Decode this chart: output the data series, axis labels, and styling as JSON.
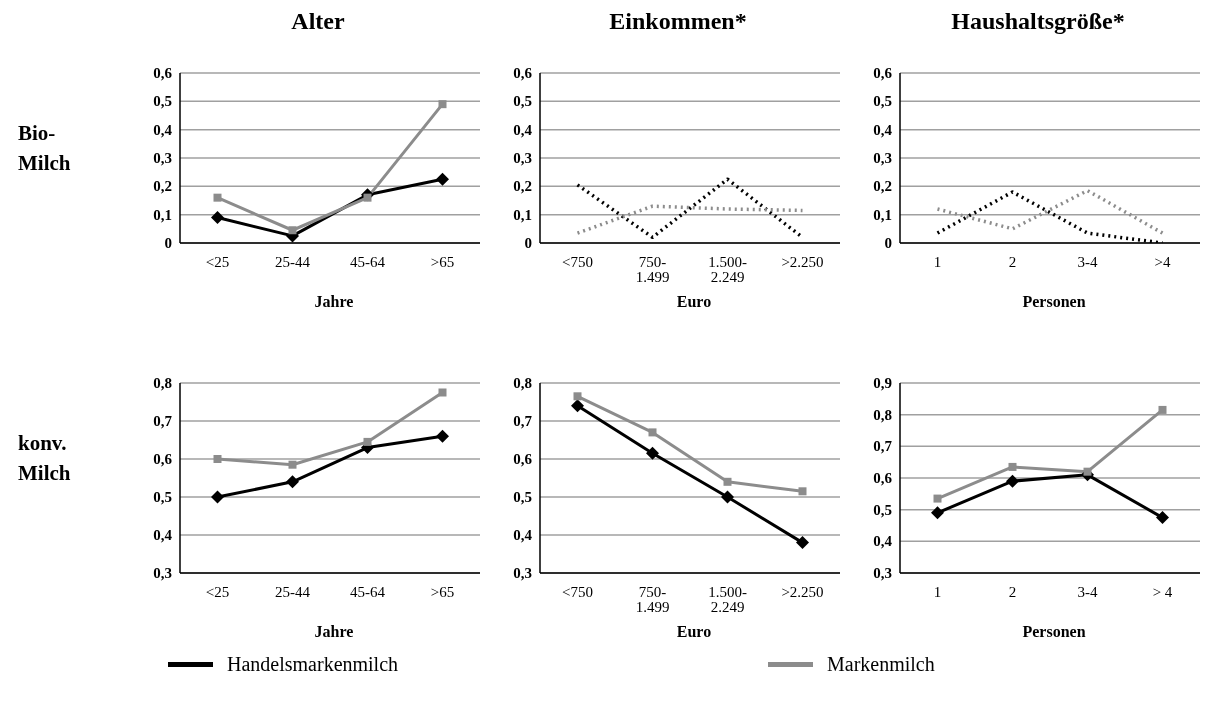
{
  "chart_data": [
    {
      "type": "line",
      "title": "Alter",
      "ylabel": "Bio-Milch",
      "xlabel": "Jahre",
      "categories": [
        "<25",
        "25-44",
        "45-64",
        ">65"
      ],
      "series": [
        {
          "color": "#000000",
          "marker": "diamond",
          "values": [
            0.09,
            0.025,
            0.17,
            0.225
          ]
        },
        {
          "color": "#8c8c8c",
          "marker": "square",
          "values": [
            0.16,
            0.045,
            0.16,
            0.49
          ]
        }
      ],
      "ylim": [
        0,
        0.6
      ],
      "yticks": [
        {
          "value": 0,
          "label": "0"
        },
        {
          "value": 0.1,
          "label": "0,1"
        },
        {
          "value": 0.2,
          "label": "0,2"
        },
        {
          "value": 0.3,
          "label": "0,3"
        },
        {
          "value": 0.4,
          "label": "0,4"
        },
        {
          "value": 0.5,
          "label": "0,5"
        },
        {
          "value": 0.6,
          "label": "0,6"
        }
      ],
      "grid": "y",
      "line_style": "solid"
    },
    {
      "type": "line",
      "title": "Einkommen*",
      "xlabel": "Euro",
      "categories": [
        "<750",
        "750-1.499",
        "1.500-2.249",
        ">2.250"
      ],
      "series": [
        {
          "color": "#000000",
          "values": [
            0.205,
            0.02,
            0.225,
            0.02
          ]
        },
        {
          "color": "#8c8c8c",
          "values": [
            0.035,
            0.13,
            0.12,
            0.115
          ]
        }
      ],
      "ylim": [
        0,
        0.6
      ],
      "yticks": [
        {
          "value": 0,
          "label": "0"
        },
        {
          "value": 0.1,
          "label": "0,1"
        },
        {
          "value": 0.2,
          "label": "0,2"
        },
        {
          "value": 0.3,
          "label": "0,3"
        },
        {
          "value": 0.4,
          "label": "0,4"
        },
        {
          "value": 0.5,
          "label": "0,5"
        },
        {
          "value": 0.6,
          "label": "0,6"
        }
      ],
      "grid": "y",
      "line_style": "dotted",
      "marker": "none"
    },
    {
      "type": "line",
      "title": "Haushaltsgröße*",
      "xlabel": "Personen",
      "categories": [
        "1",
        "2",
        "3-4",
        ">4"
      ],
      "series": [
        {
          "color": "#000000",
          "values": [
            0.035,
            0.18,
            0.035,
            0
          ]
        },
        {
          "color": "#8c8c8c",
          "values": [
            0.12,
            0.05,
            0.185,
            0.035
          ]
        }
      ],
      "ylim": [
        0,
        0.6
      ],
      "yticks": [
        {
          "value": 0,
          "label": "0"
        },
        {
          "value": 0.1,
          "label": "0,1"
        },
        {
          "value": 0.2,
          "label": "0,2"
        },
        {
          "value": 0.3,
          "label": "0,3"
        },
        {
          "value": 0.4,
          "label": "0,4"
        },
        {
          "value": 0.5,
          "label": "0,5"
        },
        {
          "value": 0.6,
          "label": "0,6"
        }
      ],
      "grid": "y",
      "line_style": "dotted",
      "marker": "none"
    },
    {
      "type": "line",
      "ylabel": "konv. Milch",
      "xlabel": "Jahre",
      "categories": [
        "<25",
        "25-44",
        "45-64",
        ">65"
      ],
      "series": [
        {
          "name": "Handelsmarkenmilch",
          "color": "#000000",
          "marker": "diamond",
          "values": [
            0.5,
            0.54,
            0.63,
            0.66
          ]
        },
        {
          "name": "Markenmilch",
          "color": "#8c8c8c",
          "marker": "square",
          "values": [
            0.6,
            0.585,
            0.645,
            0.775
          ]
        }
      ],
      "ylim": [
        0.3,
        0.8
      ],
      "yticks": [
        {
          "value": 0.3,
          "label": "0,3"
        },
        {
          "value": 0.4,
          "label": "0,4"
        },
        {
          "value": 0.5,
          "label": "0,5"
        },
        {
          "value": 0.6,
          "label": "0,6"
        },
        {
          "value": 0.7,
          "label": "0,7"
        },
        {
          "value": 0.8,
          "label": "0,8"
        }
      ],
      "grid": "y",
      "line_style": "solid",
      "legend": "bottom"
    },
    {
      "type": "line",
      "xlabel": "Euro",
      "categories": [
        "<750",
        "750-1.499",
        "1.500-2.249",
        ">2.250"
      ],
      "series": [
        {
          "color": "#000000",
          "marker": "diamond",
          "values": [
            0.74,
            0.615,
            0.5,
            0.38
          ]
        },
        {
          "color": "#8c8c8c",
          "marker": "square",
          "values": [
            0.765,
            0.67,
            0.54,
            0.515
          ]
        }
      ],
      "ylim": [
        0.3,
        0.8
      ],
      "yticks": [
        {
          "value": 0.3,
          "label": "0,3"
        },
        {
          "value": 0.4,
          "label": "0,4"
        },
        {
          "value": 0.5,
          "label": "0,5"
        },
        {
          "value": 0.6,
          "label": "0,6"
        },
        {
          "value": 0.7,
          "label": "0,7"
        },
        {
          "value": 0.8,
          "label": "0,8"
        }
      ],
      "grid": "y",
      "line_style": "solid"
    },
    {
      "type": "line",
      "xlabel": "Personen",
      "categories": [
        "1",
        "2",
        "3-4",
        "> 4"
      ],
      "series": [
        {
          "color": "#000000",
          "marker": "diamond",
          "values": [
            0.49,
            0.59,
            0.61,
            0.475
          ]
        },
        {
          "color": "#8c8c8c",
          "marker": "square",
          "values": [
            0.535,
            0.635,
            0.62,
            0.815
          ]
        }
      ],
      "ylim": [
        0.3,
        0.9
      ],
      "yticks": [
        {
          "value": 0.3,
          "label": "0,3"
        },
        {
          "value": 0.4,
          "label": "0,4"
        },
        {
          "value": 0.5,
          "label": "0,5"
        },
        {
          "value": 0.6,
          "label": "0,6"
        },
        {
          "value": 0.7,
          "label": "0,7"
        },
        {
          "value": 0.8,
          "label": "0,8"
        },
        {
          "value": 0.9,
          "label": "0,9"
        }
      ],
      "grid": "y",
      "line_style": "solid"
    }
  ]
}
